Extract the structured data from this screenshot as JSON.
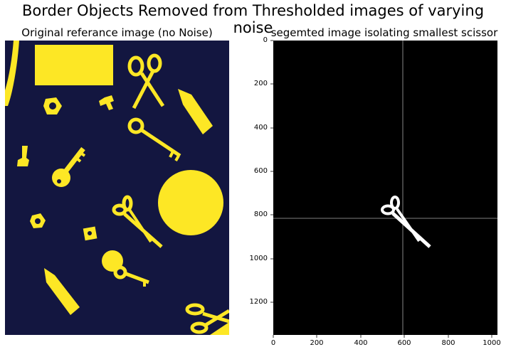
{
  "figure": {
    "title": "Border Objects Removed from Thresholded images of varying noise"
  },
  "left_panel": {
    "title": "Original referance image (no Noise)",
    "colors": {
      "background": "#131640",
      "objects": "#fde725"
    },
    "objects": [
      "rectangle",
      "hex-nut",
      "hex-nut",
      "small-key",
      "key",
      "key",
      "scissors",
      "scissors",
      "scissors",
      "circle",
      "pencil-shape",
      "pencil-shape",
      "square-nut",
      "t-shape",
      "curved-bar"
    ]
  },
  "right_panel": {
    "title": "segemted image isolating smallest scissor",
    "colors": {
      "background": "#000000",
      "objects": "#ffffff",
      "crosshair": "#bbbbbb"
    },
    "y_ticks": [
      "0",
      "200",
      "400",
      "600",
      "800",
      "1000",
      "1200"
    ],
    "x_ticks": [
      "0",
      "200",
      "400",
      "600",
      "800",
      "1000"
    ],
    "objects": [
      "scissors"
    ]
  }
}
